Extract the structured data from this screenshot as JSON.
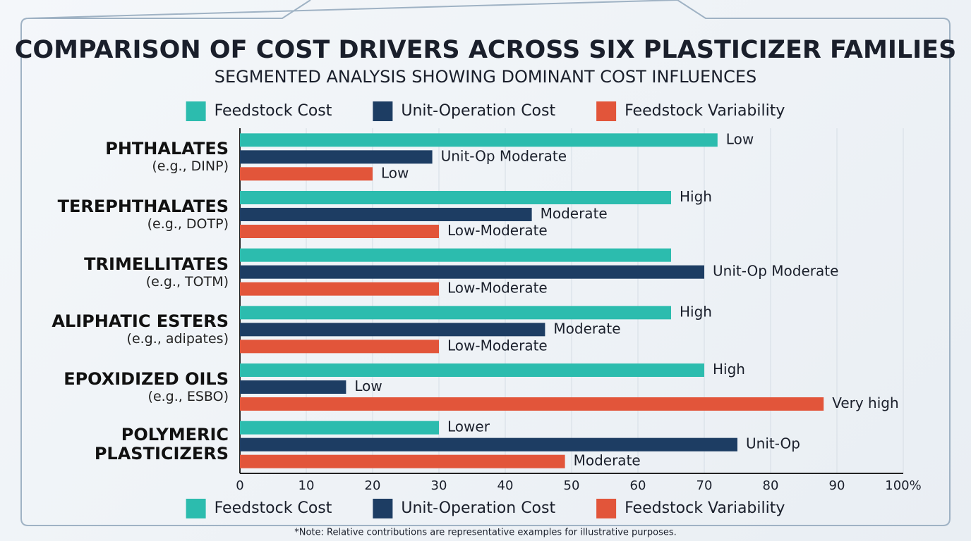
{
  "chart_data": {
    "type": "hbar",
    "title": "COMPARISON OF COST DRIVERS ACROSS SIX PLASTICIZER FAMILIES",
    "subtitle": "SEGMENTED ANALYSIS SHOWING DOMINANT COST INFLUENCES",
    "categories": [
      "PHTHALATES",
      "TEREPHTHALATES",
      "TRIMELLITATES",
      "ALIPHATIC ESTERS",
      "EPOXIDIZED OILS",
      "POLYMERIC\nPLASTICIZERS"
    ],
    "category_notes": [
      "(e.g., DINP)",
      "(e.g., DOTP)",
      "(e.g., TOTM)",
      "(e.g., adipates)",
      "(e.g., ESBO)",
      null
    ],
    "series": [
      {
        "name": "Feedstock Cost",
        "color": "#2cbcae",
        "values": [
          72,
          65,
          65,
          65,
          70,
          30
        ],
        "labels": [
          "Low",
          "High",
          null,
          "High",
          "High",
          "Lower"
        ]
      },
      {
        "name": "Unit-Operation Cost",
        "color": "#1d3d63",
        "values": [
          29,
          44,
          70,
          46,
          16,
          75
        ],
        "labels": [
          "Unit-Op Moderate",
          "Moderate",
          "Unit-Op Moderate",
          "Moderate",
          "Low",
          "Unit-Op"
        ]
      },
      {
        "name": "Feedstock Variability",
        "color": "#e2553a",
        "values": [
          20,
          30,
          30,
          30,
          88,
          49
        ],
        "labels": [
          "Low",
          "Low-Moderate",
          "Low-Moderate",
          "Low-Moderate",
          "Very high",
          "Moderate"
        ]
      }
    ],
    "xlim": [
      0,
      100
    ],
    "xticks": [
      0,
      10,
      20,
      30,
      40,
      50,
      60,
      70,
      80,
      90,
      {
        "value": 100,
        "label": "100%"
      }
    ],
    "grid": true,
    "note": "*Note: Relative contributions are representative examples for illustrative purposes."
  }
}
